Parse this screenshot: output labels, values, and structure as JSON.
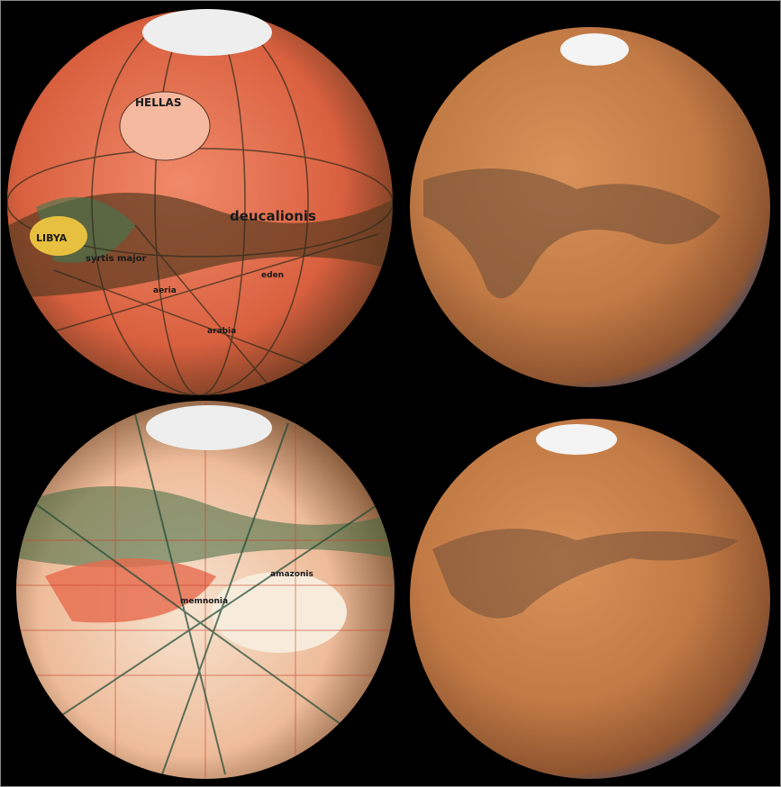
{
  "image": {
    "labels": {
      "top_left": [
        "HELLAS",
        "LIBYA",
        "deucalionis",
        "syrtis major",
        "aeria",
        "eden",
        "arabia"
      ],
      "bottom_left": [
        "memnonia",
        "amazonis"
      ]
    }
  }
}
